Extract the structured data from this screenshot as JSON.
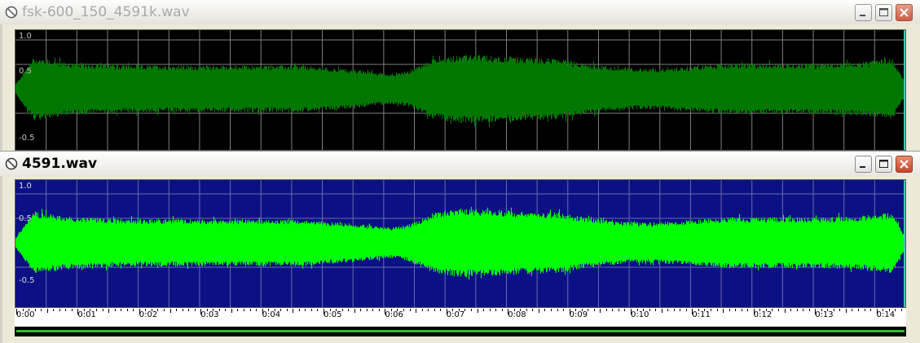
{
  "windows": [
    {
      "title": "fsk-600_150_4591k.wav",
      "active": false,
      "icon": "no-entry-icon",
      "background_color": "#000000",
      "wave_color": "#007800",
      "grid_color": "#808080",
      "y_labels": [
        "1.0",
        "0.5",
        "-0.5"
      ]
    },
    {
      "title": "4591.wav",
      "active": true,
      "icon": "no-entry-icon",
      "background_color": "#0b1185",
      "wave_color": "#00ff00",
      "grid_color": "#6a6aa8",
      "y_labels": [
        "1.0",
        "0.5",
        "-0.5"
      ]
    }
  ],
  "time_axis": {
    "labels": [
      "0:00",
      "0:01",
      "0:02",
      "0:03",
      "0:04",
      "0:05",
      "0:06",
      "0:07",
      "0:08",
      "0:09",
      "0:10",
      "0:11",
      "0:12",
      "0:13",
      "0:14"
    ]
  },
  "waveform_envelope": {
    "x_fraction": [
      0,
      0.02,
      0.06,
      0.12,
      0.22,
      0.32,
      0.38,
      0.42,
      0.44,
      0.47,
      0.5,
      0.53,
      0.57,
      0.61,
      0.64,
      0.68,
      0.72,
      0.76,
      0.8,
      0.85,
      0.9,
      0.95,
      0.985,
      1
    ],
    "amplitude": [
      0.1,
      0.62,
      0.52,
      0.47,
      0.46,
      0.46,
      0.38,
      0.3,
      0.35,
      0.6,
      0.68,
      0.66,
      0.62,
      0.6,
      0.5,
      0.42,
      0.4,
      0.45,
      0.5,
      0.5,
      0.5,
      0.53,
      0.6,
      0.1
    ]
  },
  "window_buttons": {
    "minimize": "minimize-icon",
    "maximize": "maximize-icon",
    "close": "close-icon"
  }
}
